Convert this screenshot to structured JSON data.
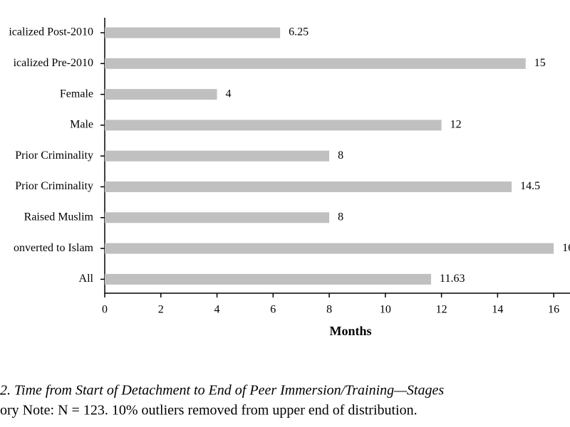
{
  "chart_data": {
    "type": "barh",
    "categories": [
      "icalized Post-2010",
      "icalized Pre-2010",
      "Female",
      "Male",
      "Prior Criminality",
      "Prior Criminality",
      "Raised Muslim",
      "onverted to Islam",
      "All"
    ],
    "values": [
      6.25,
      15,
      4,
      12,
      8,
      14.5,
      8,
      16,
      11.63
    ],
    "color": "#c0c0c0",
    "xlabel": "Months",
    "xlim": [
      0,
      16.58
    ],
    "xticks": [
      0,
      2,
      4,
      6,
      8,
      10,
      12,
      14,
      16
    ],
    "caption": [
      "2. Time from Start of Detachment to End of Peer Immersion/Training—Stages",
      "ory Note: N = 123. 10% outliers removed from upper end of distribution."
    ]
  }
}
